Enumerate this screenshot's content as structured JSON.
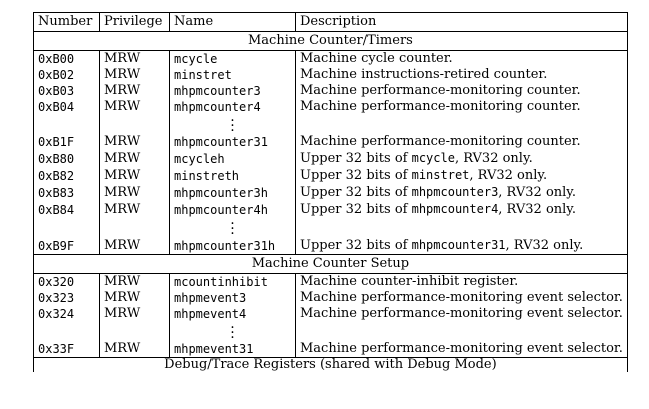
{
  "headers": [
    "Number",
    "Privilege",
    "Name",
    "Description"
  ],
  "sections": [
    {
      "title": "Machine Counter/Timers",
      "rows": [
        {
          "number": "0xB00",
          "privilege": "MRW",
          "name": "mcycle",
          "desc": [
            {
              "t": "Machine cycle counter."
            }
          ]
        },
        {
          "number": "0xB02",
          "privilege": "MRW",
          "name": "minstret",
          "desc": [
            {
              "t": "Machine instructions-retired counter."
            }
          ]
        },
        {
          "number": "0xB03",
          "privilege": "MRW",
          "name": "mhpmcounter3",
          "desc": [
            {
              "t": "Machine performance-monitoring counter."
            }
          ]
        },
        {
          "number": "0xB04",
          "privilege": "MRW",
          "name": "mhpmcounter4",
          "desc": [
            {
              "t": "Machine performance-monitoring counter."
            }
          ]
        },
        {
          "ellipsis": true
        },
        {
          "number": "0xB1F",
          "privilege": "MRW",
          "name": "mhpmcounter31",
          "desc": [
            {
              "t": "Machine performance-monitoring counter."
            }
          ]
        },
        {
          "number": "0xB80",
          "privilege": "MRW",
          "name": "mcycleh",
          "desc": [
            {
              "t": "Upper 32 bits of "
            },
            {
              "t": "mcycle",
              "code": true
            },
            {
              "t": ", RV32 only."
            }
          ]
        },
        {
          "number": "0xB82",
          "privilege": "MRW",
          "name": "minstreth",
          "desc": [
            {
              "t": "Upper 32 bits of "
            },
            {
              "t": "minstret",
              "code": true
            },
            {
              "t": ", RV32 only."
            }
          ]
        },
        {
          "number": "0xB83",
          "privilege": "MRW",
          "name": "mhpmcounter3h",
          "desc": [
            {
              "t": "Upper 32 bits of "
            },
            {
              "t": "mhpmcounter3",
              "code": true
            },
            {
              "t": ", RV32 only."
            }
          ]
        },
        {
          "number": "0xB84",
          "privilege": "MRW",
          "name": "mhpmcounter4h",
          "desc": [
            {
              "t": "Upper 32 bits of "
            },
            {
              "t": "mhpmcounter4",
              "code": true
            },
            {
              "t": ", RV32 only."
            }
          ]
        },
        {
          "ellipsis": true
        },
        {
          "number": "0xB9F",
          "privilege": "MRW",
          "name": "mhpmcounter31h",
          "desc": [
            {
              "t": "Upper 32 bits of "
            },
            {
              "t": "mhpmcounter31",
              "code": true
            },
            {
              "t": ", RV32 only."
            }
          ]
        }
      ]
    },
    {
      "title": "Machine Counter Setup",
      "rows": [
        {
          "number": "0x320",
          "privilege": "MRW",
          "name": "mcountinhibit",
          "desc": [
            {
              "t": "Machine counter-inhibit register."
            }
          ]
        },
        {
          "number": "0x323",
          "privilege": "MRW",
          "name": "mhpmevent3",
          "desc": [
            {
              "t": "Machine performance-monitoring event selector."
            }
          ]
        },
        {
          "number": "0x324",
          "privilege": "MRW",
          "name": "mhpmevent4",
          "desc": [
            {
              "t": "Machine performance-monitoring event selector."
            }
          ]
        },
        {
          "ellipsis": true
        },
        {
          "number": "0x33F",
          "privilege": "MRW",
          "name": "mhpmevent31",
          "desc": [
            {
              "t": "Machine performance-monitoring event selector."
            }
          ]
        }
      ]
    },
    {
      "title": "Debug/Trace Registers (shared with Debug Mode)",
      "cut": true,
      "rows": []
    }
  ]
}
